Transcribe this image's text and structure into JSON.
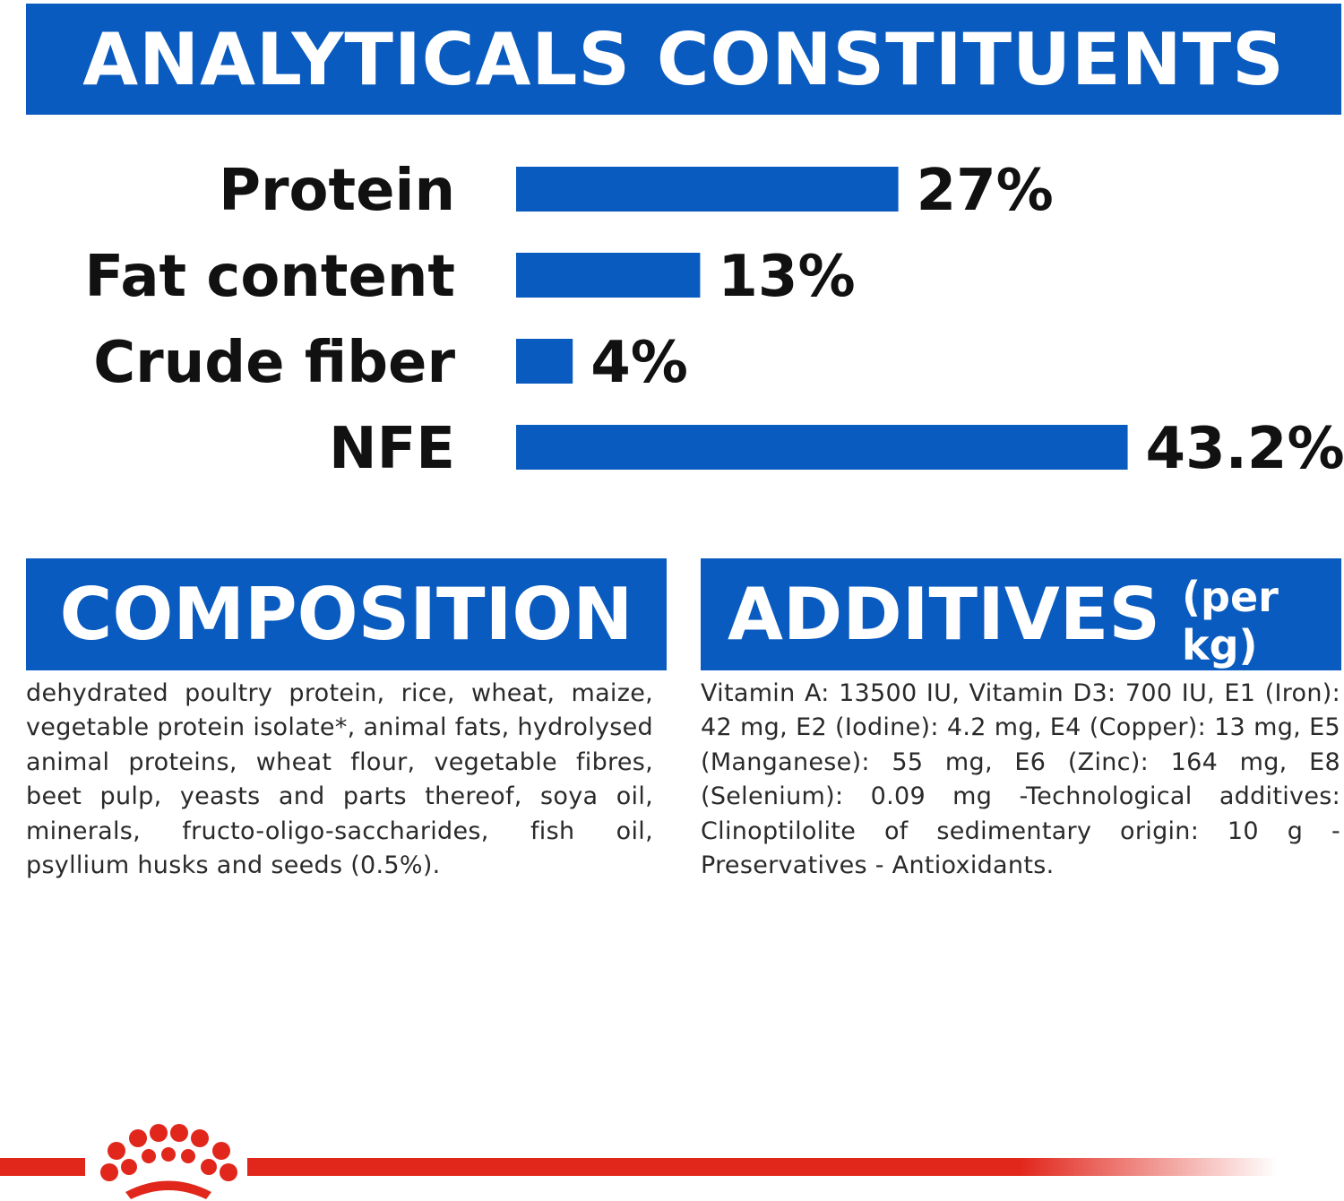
{
  "headers": {
    "analytical": "ANALYTICALS CONSTITUENTS",
    "composition": "COMPOSITION",
    "additives": "ADDITIVES",
    "additives_unit": "(per kg)"
  },
  "chart_data": {
    "type": "bar",
    "orientation": "horizontal",
    "categories": [
      "Protein",
      "Fat content",
      "Crude fiber",
      "NFE"
    ],
    "values": [
      27,
      13,
      4,
      43.2
    ],
    "value_labels": [
      "27%",
      "13%",
      "4%",
      "43.2%"
    ],
    "unit": "%",
    "title": "ANALYTICALS CONSTITUENTS",
    "bar_color": "#0a5bbf",
    "grid": false,
    "legend": "none"
  },
  "composition_text": "dehydrated poultry protein, rice, wheat, maize, vegetable protein isolate*, animal fats, hydrolysed animal proteins, wheat flour, vegetable fibres, beet pulp, yeasts and parts thereof, soya oil, minerals, fructo-oligo-saccharides, fish oil, psyllium husks and seeds (0.5%).",
  "additives_text": "Vitamin A: 13500 IU, Vitamin D3: 700 IU, E1 (Iron): 42 mg, E2 (Iodine): 4.2 mg, E4 (Copper): 13 mg, E5 (Manganese): 55 mg, E6 (Zinc): 164 mg, E8 (Selenium): 0.09 mg -Technological additives: Clinoptilolite of sedimentary origin: 10 g - Preservatives - Antioxidants.",
  "colors": {
    "brand_blue": "#0a5bbf",
    "brand_red": "#e1271c"
  },
  "footer": {
    "logo_icon": "crown-icon"
  }
}
